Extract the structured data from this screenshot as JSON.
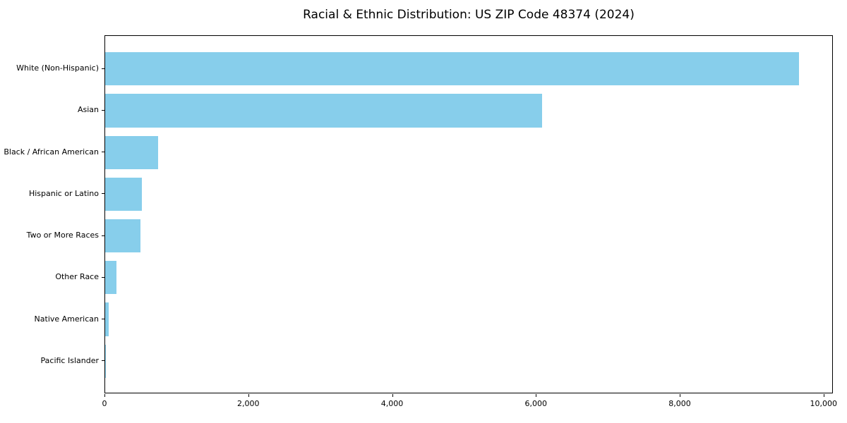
{
  "chart_data": {
    "type": "bar",
    "orientation": "horizontal",
    "title": "Racial & Ethnic Distribution: US ZIP Code 48374 (2024)",
    "categories": [
      "White (Non-Hispanic)",
      "Asian",
      "Black / African American",
      "Hispanic or Latino",
      "Two or More Races",
      "Other Race",
      "Native American",
      "Pacific Islander"
    ],
    "values": [
      9650,
      6080,
      740,
      510,
      490,
      160,
      50,
      5
    ],
    "xlabel": "",
    "ylabel": "",
    "xticks": [
      0,
      2000,
      4000,
      6000,
      8000,
      10000
    ],
    "xtick_labels": [
      "0",
      "2,000",
      "4,000",
      "6,000",
      "8,000",
      "10,000"
    ],
    "xlim": [
      0,
      10130
    ],
    "bar_color": "#87CEEB",
    "grid": false,
    "legend": null
  }
}
